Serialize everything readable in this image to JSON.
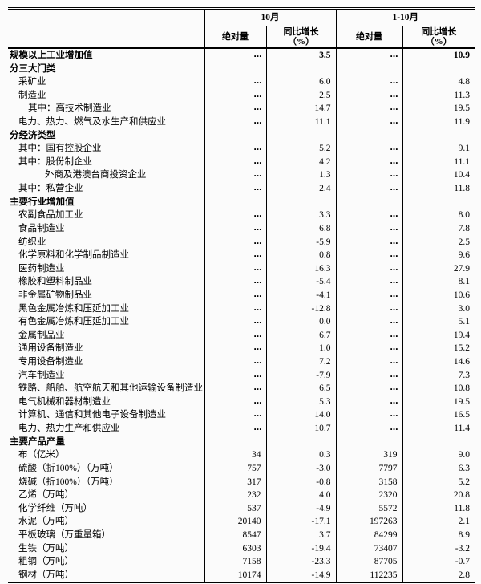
{
  "table": {
    "title_hint": "规模以上工业增加值及主要产品产量统计表",
    "col_headers": {
      "period_oct": "10月",
      "period_jan_oct": "1-10月",
      "absolute_oct": "绝对量",
      "yoy_oct_line1": "同比增长",
      "yoy_oct_line2": "（%）",
      "absolute_ytd": "绝对量",
      "yoy_ytd_line1": "同比增长",
      "yoy_ytd_line2": "（%）"
    },
    "rows": [
      {
        "label": "规模以上工业增加值",
        "bold": true,
        "indent": 0,
        "values": [
          "…",
          "3.5",
          "…",
          "10.9"
        ]
      },
      {
        "label": "分三大门类",
        "bold": true,
        "indent": 0,
        "values": [
          "",
          "",
          "",
          ""
        ]
      },
      {
        "label": "采矿业",
        "bold": false,
        "indent": 1,
        "values": [
          "…",
          "6.0",
          "…",
          "4.8"
        ]
      },
      {
        "label": "制造业",
        "bold": false,
        "indent": 1,
        "values": [
          "…",
          "2.5",
          "…",
          "11.3"
        ]
      },
      {
        "label": "其中：高技术制造业",
        "bold": false,
        "indent": 2,
        "values": [
          "…",
          "14.7",
          "…",
          "19.5"
        ]
      },
      {
        "label": "电力、热力、燃气及水生产和供应业",
        "bold": false,
        "indent": 1,
        "values": [
          "…",
          "11.1",
          "…",
          "11.9"
        ]
      },
      {
        "label": "分经济类型",
        "bold": true,
        "indent": 0,
        "values": [
          "",
          "",
          "",
          ""
        ]
      },
      {
        "label": "其中：国有控股企业",
        "bold": false,
        "indent": 1,
        "values": [
          "…",
          "5.2",
          "…",
          "9.1"
        ]
      },
      {
        "label": "其中：股份制企业",
        "bold": false,
        "indent": 1,
        "values": [
          "…",
          "4.2",
          "…",
          "11.1"
        ]
      },
      {
        "label": "外商及港澳台商投资企业",
        "bold": false,
        "indent": 3,
        "values": [
          "…",
          "1.3",
          "…",
          "10.4"
        ]
      },
      {
        "label": "其中：私营企业",
        "bold": false,
        "indent": 1,
        "values": [
          "…",
          "2.4",
          "…",
          "11.8"
        ]
      },
      {
        "label": "主要行业增加值",
        "bold": true,
        "indent": 0,
        "values": [
          "",
          "",
          "",
          ""
        ]
      },
      {
        "label": "农副食品加工业",
        "bold": false,
        "indent": 1,
        "values": [
          "…",
          "3.3",
          "…",
          "8.0"
        ]
      },
      {
        "label": "食品制造业",
        "bold": false,
        "indent": 1,
        "values": [
          "…",
          "6.8",
          "…",
          "7.8"
        ]
      },
      {
        "label": "纺织业",
        "bold": false,
        "indent": 1,
        "values": [
          "…",
          "-5.9",
          "…",
          "2.5"
        ]
      },
      {
        "label": "化学原料和化学制品制造业",
        "bold": false,
        "indent": 1,
        "values": [
          "…",
          "0.8",
          "…",
          "9.6"
        ]
      },
      {
        "label": "医药制造业",
        "bold": false,
        "indent": 1,
        "values": [
          "…",
          "16.3",
          "…",
          "27.9"
        ]
      },
      {
        "label": "橡胶和塑料制品业",
        "bold": false,
        "indent": 1,
        "values": [
          "…",
          "-5.4",
          "…",
          "8.1"
        ]
      },
      {
        "label": "非金属矿物制品业",
        "bold": false,
        "indent": 1,
        "values": [
          "…",
          "-4.1",
          "…",
          "10.6"
        ]
      },
      {
        "label": "黑色金属冶炼和压延加工业",
        "bold": false,
        "indent": 1,
        "values": [
          "…",
          "-12.8",
          "…",
          "3.0"
        ]
      },
      {
        "label": "有色金属冶炼和压延加工业",
        "bold": false,
        "indent": 1,
        "values": [
          "…",
          "0.0",
          "…",
          "5.1"
        ]
      },
      {
        "label": "金属制品业",
        "bold": false,
        "indent": 1,
        "values": [
          "…",
          "6.7",
          "…",
          "19.4"
        ]
      },
      {
        "label": "通用设备制造业",
        "bold": false,
        "indent": 1,
        "values": [
          "…",
          "1.0",
          "…",
          "15.2"
        ]
      },
      {
        "label": "专用设备制造业",
        "bold": false,
        "indent": 1,
        "values": [
          "…",
          "7.2",
          "…",
          "14.6"
        ]
      },
      {
        "label": "汽车制造业",
        "bold": false,
        "indent": 1,
        "values": [
          "…",
          "-7.9",
          "…",
          "7.3"
        ]
      },
      {
        "label": "铁路、船舶、航空航天和其他运输设备制造业",
        "bold": false,
        "indent": 1,
        "values": [
          "…",
          "6.5",
          "…",
          "10.8"
        ]
      },
      {
        "label": "电气机械和器材制造业",
        "bold": false,
        "indent": 1,
        "values": [
          "…",
          "5.3",
          "…",
          "19.5"
        ]
      },
      {
        "label": "计算机、通信和其他电子设备制造业",
        "bold": false,
        "indent": 1,
        "values": [
          "…",
          "14.0",
          "…",
          "16.5"
        ]
      },
      {
        "label": "电力、热力生产和供应业",
        "bold": false,
        "indent": 1,
        "values": [
          "…",
          "10.7",
          "…",
          "11.4"
        ]
      },
      {
        "label": "主要产品产量",
        "bold": true,
        "indent": 0,
        "values": [
          "",
          "",
          "",
          ""
        ]
      },
      {
        "label": "布（亿米）",
        "bold": false,
        "indent": 1,
        "values": [
          "34",
          "0.3",
          "319",
          "9.0"
        ]
      },
      {
        "label": "硫酸（折100%）（万吨）",
        "bold": false,
        "indent": 1,
        "values": [
          "757",
          "-3.0",
          "7797",
          "6.3"
        ]
      },
      {
        "label": "烧碱（折100%）（万吨）",
        "bold": false,
        "indent": 1,
        "values": [
          "317",
          "-0.8",
          "3158",
          "5.2"
        ]
      },
      {
        "label": "乙烯（万吨）",
        "bold": false,
        "indent": 1,
        "values": [
          "232",
          "4.0",
          "2320",
          "20.8"
        ]
      },
      {
        "label": "化学纤维（万吨）",
        "bold": false,
        "indent": 1,
        "values": [
          "537",
          "-4.9",
          "5572",
          "11.8"
        ]
      },
      {
        "label": "水泥（万吨）",
        "bold": false,
        "indent": 1,
        "values": [
          "20140",
          "-17.1",
          "197263",
          "2.1"
        ]
      },
      {
        "label": "平板玻璃（万重量箱）",
        "bold": false,
        "indent": 1,
        "values": [
          "8547",
          "3.7",
          "84299",
          "8.9"
        ]
      },
      {
        "label": "生铁（万吨）",
        "bold": false,
        "indent": 1,
        "values": [
          "6303",
          "-19.4",
          "73407",
          "-3.2"
        ]
      },
      {
        "label": "粗钢（万吨）",
        "bold": false,
        "indent": 1,
        "values": [
          "7158",
          "-23.3",
          "87705",
          "-0.7"
        ]
      },
      {
        "label": "钢材（万吨）",
        "bold": false,
        "indent": 1,
        "values": [
          "10174",
          "-14.9",
          "112235",
          "2.8"
        ]
      }
    ]
  }
}
